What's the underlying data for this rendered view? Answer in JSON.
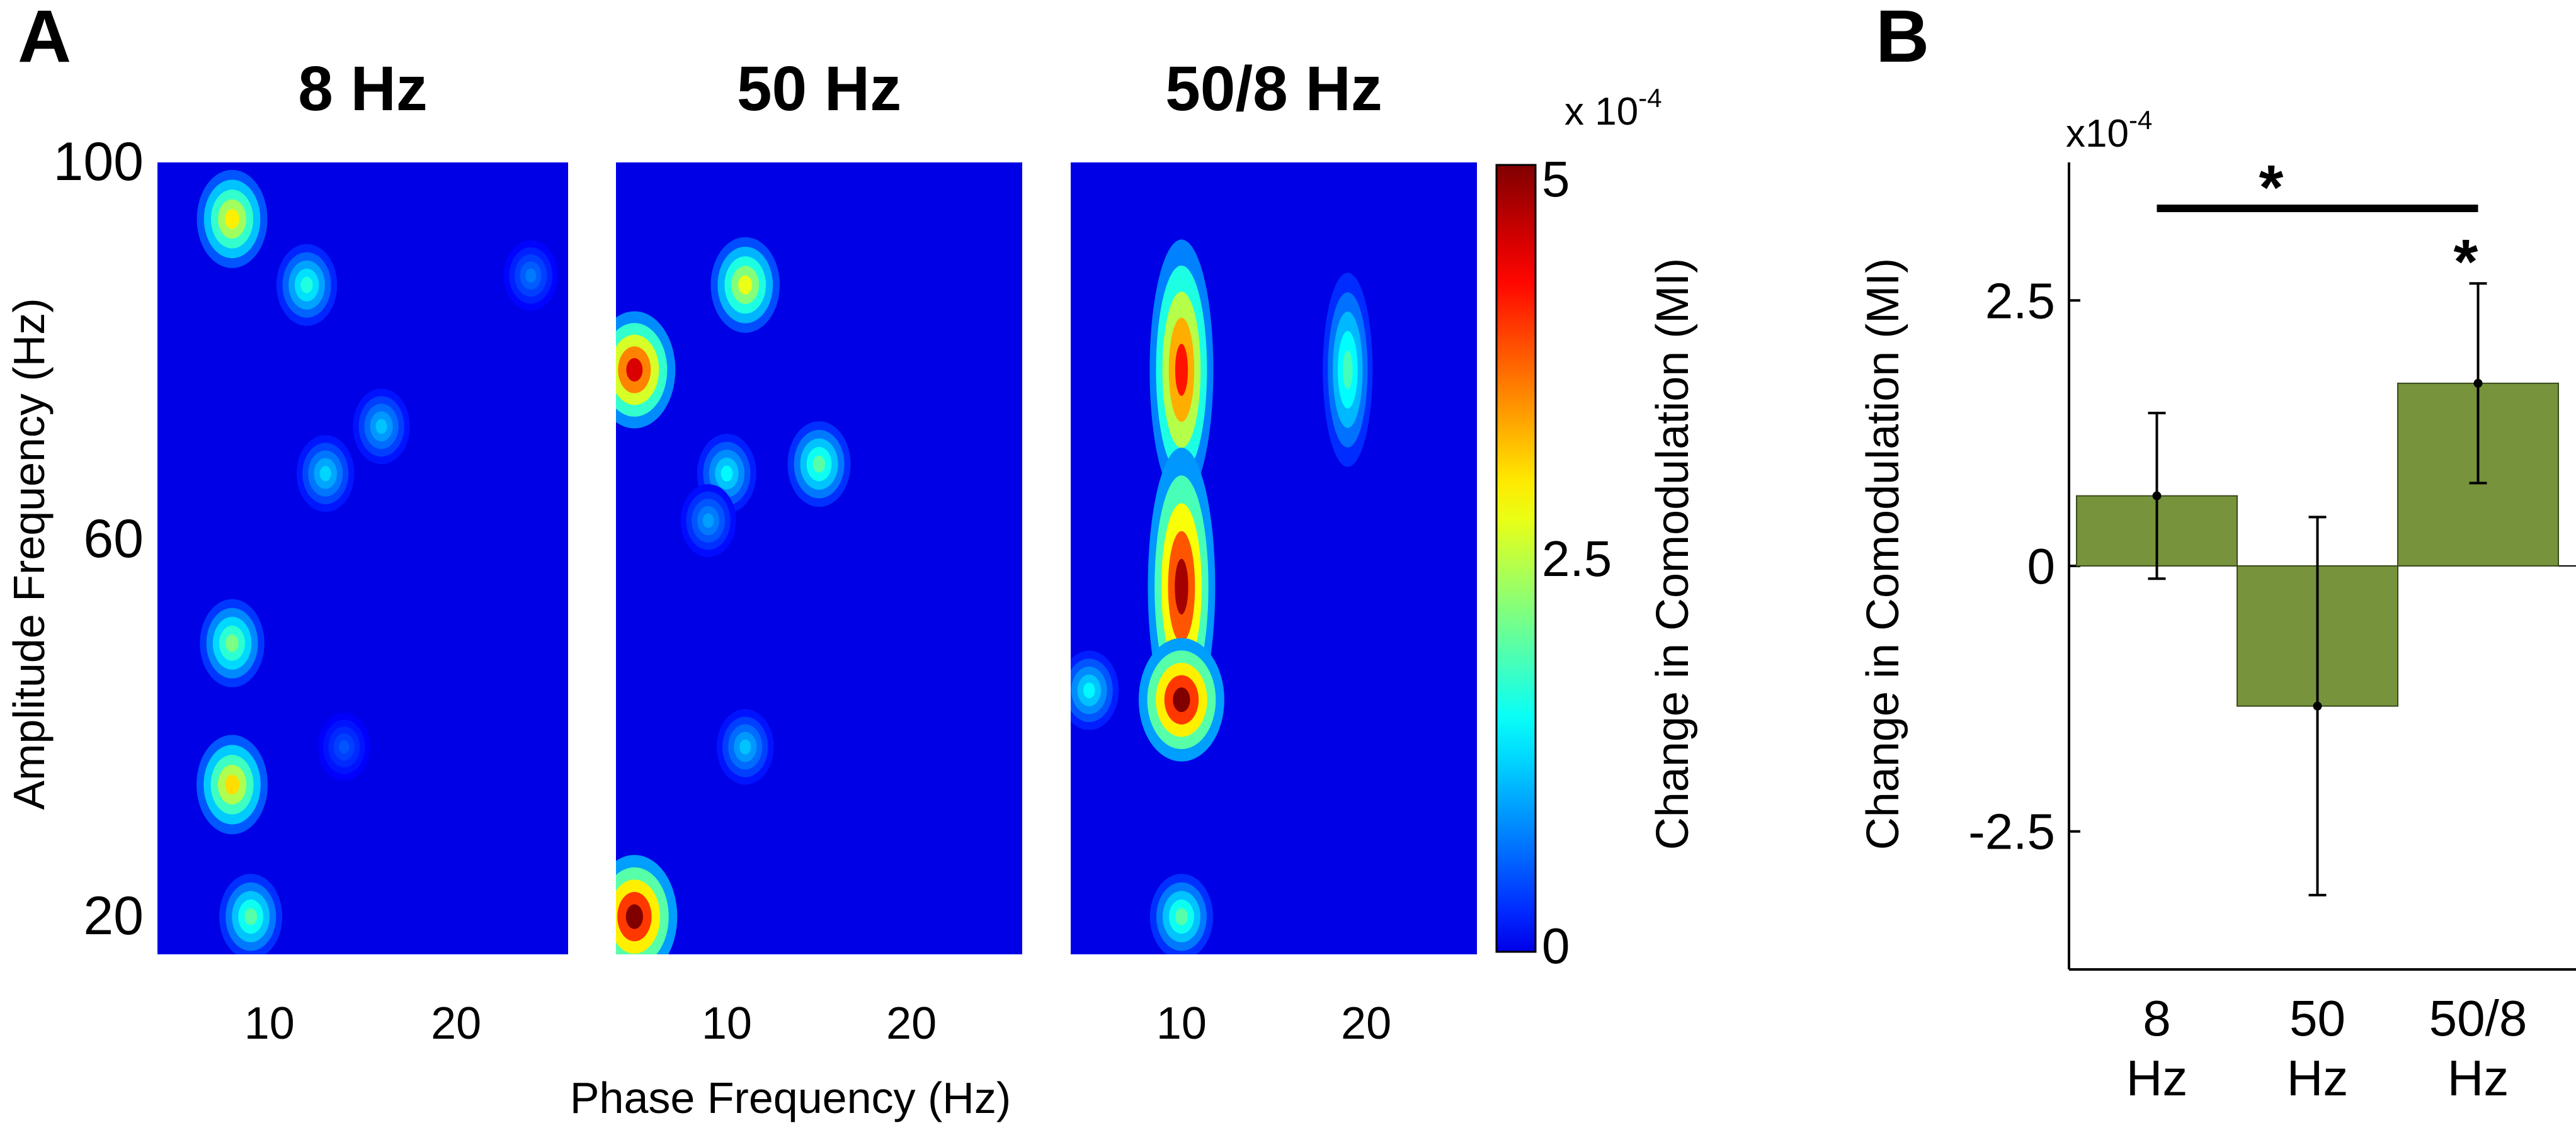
{
  "panel_a": {
    "letter": "A",
    "xlabel": "Phase Frequency (Hz)",
    "ylabel": "Amplitude Frequency (Hz)",
    "colorbar": {
      "label": "Change in Comodulation (MI)",
      "exponent": "x 10",
      "exponent_power": "-4",
      "ticks": [
        "5",
        "2.5",
        "0"
      ],
      "colormap": "jet",
      "range": [
        0,
        5
      ]
    }
  },
  "panel_b": {
    "letter": "B",
    "exponent": "x10",
    "exponent_power": "-4",
    "sig_star": "*",
    "bar_star": "*"
  },
  "chart_data": [
    {
      "type": "heatmap",
      "title": "8 Hz",
      "xlabel": "Phase Frequency (Hz)",
      "ylabel": "Amplitude Frequency (Hz)",
      "xlim": [
        4,
        26
      ],
      "ylim": [
        16,
        100
      ],
      "xticks": [
        "10",
        "20"
      ],
      "yticks": [
        "100",
        "60",
        "20"
      ],
      "value_unit": "x 10^-4 MI",
      "hotspots": [
        {
          "x": 8,
          "y": 94,
          "v": 3.0
        },
        {
          "x": 12,
          "y": 87,
          "v": 1.7
        },
        {
          "x": 16,
          "y": 72,
          "v": 1.2
        },
        {
          "x": 13,
          "y": 67,
          "v": 1.3
        },
        {
          "x": 8,
          "y": 49,
          "v": 2.2
        },
        {
          "x": 8,
          "y": 34,
          "v": 3.1
        },
        {
          "x": 9,
          "y": 20,
          "v": 2.0
        },
        {
          "x": 24,
          "y": 88,
          "v": 0.8
        },
        {
          "x": 14,
          "y": 38,
          "v": 0.6
        }
      ]
    },
    {
      "type": "heatmap",
      "title": "50 Hz",
      "xlabel": "Phase Frequency (Hz)",
      "ylabel": "Amplitude Frequency (Hz)",
      "xlim": [
        4,
        26
      ],
      "ylim": [
        16,
        100
      ],
      "xticks": [
        "10",
        "20"
      ],
      "yticks": [
        "100",
        "60",
        "20"
      ],
      "value_unit": "x 10^-4 MI",
      "hotspots": [
        {
          "x": 11,
          "y": 87,
          "v": 2.8
        },
        {
          "x": 15,
          "y": 68,
          "v": 2.0
        },
        {
          "x": 10,
          "y": 67,
          "v": 1.5
        },
        {
          "x": 5,
          "y": 78,
          "v": 4.5
        },
        {
          "x": 5,
          "y": 20,
          "v": 5.0
        },
        {
          "x": 11,
          "y": 38,
          "v": 1.2
        },
        {
          "x": 9,
          "y": 62,
          "v": 1.0
        }
      ]
    },
    {
      "type": "heatmap",
      "title": "50/8 Hz",
      "xlabel": "Phase Frequency (Hz)",
      "ylabel": "Amplitude Frequency (Hz)",
      "xlim": [
        4,
        26
      ],
      "ylim": [
        16,
        100
      ],
      "xticks": [
        "10",
        "20"
      ],
      "yticks": [
        "100",
        "60",
        "20"
      ],
      "value_unit": "x 10^-4 MI",
      "hotspots": [
        {
          "x": 10,
          "y": 78,
          "v": 4.2
        },
        {
          "x": 10,
          "y": 55,
          "v": 4.8
        },
        {
          "x": 10,
          "y": 43,
          "v": 5.0
        },
        {
          "x": 19,
          "y": 78,
          "v": 1.9
        },
        {
          "x": 10,
          "y": 20,
          "v": 2.0
        },
        {
          "x": 5,
          "y": 44,
          "v": 1.5
        }
      ]
    },
    {
      "type": "bar",
      "categories": [
        "8\nHz",
        "50\nHz",
        "50/8\nHz"
      ],
      "values": [
        0.66,
        -1.32,
        1.72
      ],
      "error": [
        0.78,
        1.78,
        0.94
      ],
      "ylabel": "Change in Comodulation (MI)",
      "ylim": [
        -3.8,
        3.8
      ],
      "yticks": [
        "2.5",
        "0",
        "-2.5"
      ],
      "ytick_values": [
        2.5,
        0,
        -2.5
      ],
      "value_unit": "x 10^-4",
      "color": "#77933c",
      "significance": {
        "bracket": [
          "8\nHz",
          "50/8\nHz"
        ],
        "marked_bar": "50/8\nHz"
      }
    }
  ]
}
